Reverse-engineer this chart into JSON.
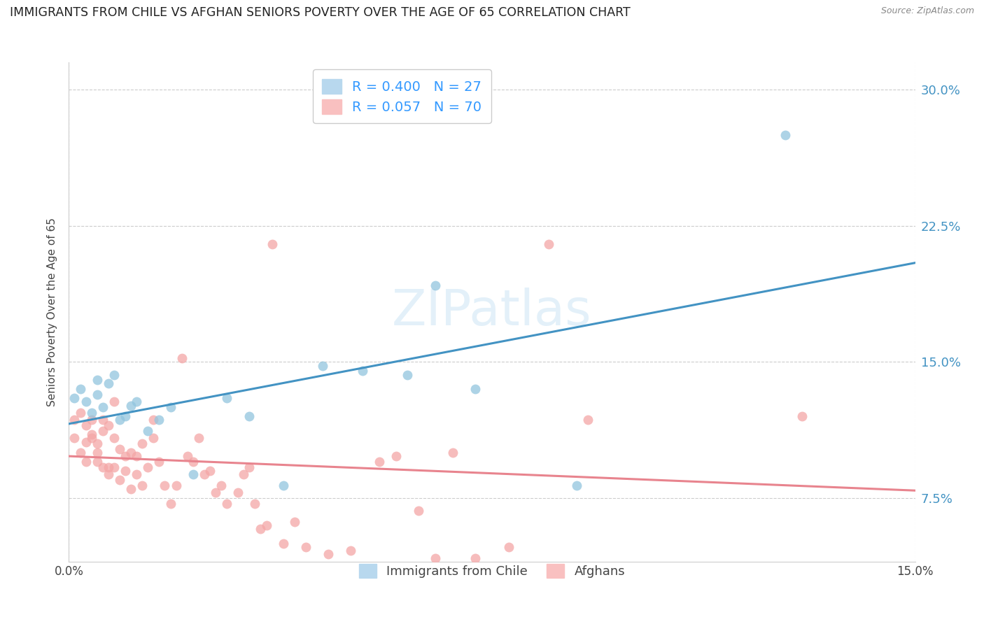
{
  "title": "IMMIGRANTS FROM CHILE VS AFGHAN SENIORS POVERTY OVER THE AGE OF 65 CORRELATION CHART",
  "source": "Source: ZipAtlas.com",
  "ylabel": "Seniors Poverty Over the Age of 65",
  "xlim": [
    0.0,
    0.15
  ],
  "ylim": [
    0.04,
    0.315
  ],
  "watermark": "ZIPatlas",
  "chile_R": 0.4,
  "chile_N": 27,
  "afghan_R": 0.057,
  "afghan_N": 70,
  "chile_color": "#92c5de",
  "afghan_color": "#f4a6a6",
  "chile_line_color": "#4393c3",
  "afghan_line_color": "#e8848e",
  "chile_x": [
    0.001,
    0.002,
    0.003,
    0.004,
    0.005,
    0.005,
    0.006,
    0.007,
    0.008,
    0.009,
    0.01,
    0.011,
    0.012,
    0.014,
    0.016,
    0.018,
    0.022,
    0.028,
    0.032,
    0.038,
    0.045,
    0.052,
    0.06,
    0.065,
    0.072,
    0.09,
    0.127
  ],
  "chile_y": [
    0.13,
    0.135,
    0.128,
    0.122,
    0.14,
    0.132,
    0.125,
    0.138,
    0.143,
    0.118,
    0.12,
    0.126,
    0.128,
    0.112,
    0.118,
    0.125,
    0.088,
    0.13,
    0.12,
    0.082,
    0.148,
    0.145,
    0.143,
    0.192,
    0.135,
    0.082,
    0.275
  ],
  "afghan_x": [
    0.001,
    0.001,
    0.002,
    0.002,
    0.003,
    0.003,
    0.003,
    0.004,
    0.004,
    0.004,
    0.005,
    0.005,
    0.005,
    0.006,
    0.006,
    0.006,
    0.007,
    0.007,
    0.007,
    0.008,
    0.008,
    0.008,
    0.009,
    0.009,
    0.01,
    0.01,
    0.011,
    0.011,
    0.012,
    0.012,
    0.013,
    0.013,
    0.014,
    0.015,
    0.015,
    0.016,
    0.017,
    0.018,
    0.019,
    0.02,
    0.021,
    0.022,
    0.023,
    0.024,
    0.025,
    0.026,
    0.027,
    0.028,
    0.03,
    0.031,
    0.032,
    0.033,
    0.034,
    0.035,
    0.036,
    0.038,
    0.04,
    0.042,
    0.046,
    0.05,
    0.055,
    0.058,
    0.062,
    0.065,
    0.068,
    0.072,
    0.078,
    0.085,
    0.092,
    0.13
  ],
  "afghan_y": [
    0.118,
    0.108,
    0.122,
    0.1,
    0.115,
    0.106,
    0.095,
    0.11,
    0.118,
    0.108,
    0.1,
    0.095,
    0.105,
    0.118,
    0.112,
    0.092,
    0.115,
    0.092,
    0.088,
    0.128,
    0.108,
    0.092,
    0.102,
    0.085,
    0.098,
    0.09,
    0.1,
    0.08,
    0.098,
    0.088,
    0.105,
    0.082,
    0.092,
    0.118,
    0.108,
    0.095,
    0.082,
    0.072,
    0.082,
    0.152,
    0.098,
    0.095,
    0.108,
    0.088,
    0.09,
    0.078,
    0.082,
    0.072,
    0.078,
    0.088,
    0.092,
    0.072,
    0.058,
    0.06,
    0.215,
    0.05,
    0.062,
    0.048,
    0.044,
    0.046,
    0.095,
    0.098,
    0.068,
    0.042,
    0.1,
    0.042,
    0.048,
    0.215,
    0.118,
    0.12
  ],
  "background_color": "#ffffff",
  "grid_color": "#cccccc",
  "title_fontsize": 12.5,
  "axis_label_fontsize": 11,
  "tick_fontsize": 12
}
